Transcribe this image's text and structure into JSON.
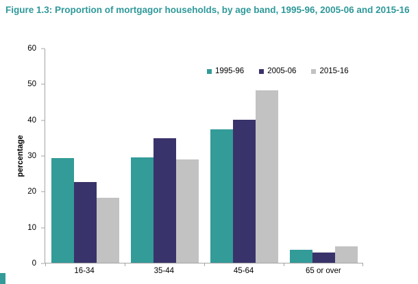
{
  "header": {
    "title": "Figure 1.3: Proportion of mortgagor households, by age band, 1995-96, 2005-06 and 2015-16"
  },
  "chart_data": {
    "type": "bar",
    "title": "Figure 1.3: Proportion of mortgagor households, by age band, 1995-96, 2005-06 and 2015-16",
    "categories": [
      "16-34",
      "35-44",
      "45-64",
      "65 or over"
    ],
    "series": [
      {
        "name": "1995-96",
        "color": "#339b98",
        "values": [
          29.4,
          29.6,
          37.4,
          3.6
        ]
      },
      {
        "name": "2005-06",
        "color": "#39336b",
        "values": [
          22.6,
          34.8,
          40.1,
          2.9
        ]
      },
      {
        "name": "2015-16",
        "color": "#c2c2c2",
        "values": [
          18.3,
          29.0,
          48.3,
          4.6
        ]
      }
    ],
    "xlabel": "",
    "ylabel": "percentage",
    "ylim": [
      0,
      60
    ],
    "yticks": [
      0,
      10,
      20,
      30,
      40,
      50,
      60
    ],
    "grid": false,
    "legend_position": "top-right-inside"
  },
  "colors": {
    "title_text": "#2f9899",
    "axis_line": "#a3a3a3",
    "tick_text": "#000000",
    "corner_accent": "#339b98"
  }
}
